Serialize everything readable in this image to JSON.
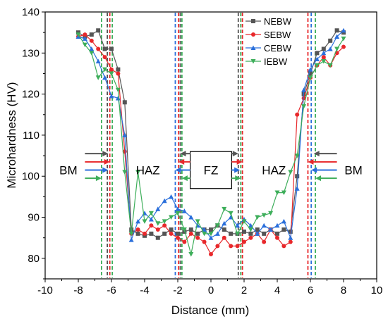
{
  "chart_data": {
    "type": "line",
    "xlabel": "Distance (mm)",
    "ylabel": "Microhardness (HV)",
    "xlim": [
      -10,
      10
    ],
    "ylim": [
      75,
      140
    ],
    "xticks": [
      -10,
      -8,
      -6,
      -4,
      -2,
      0,
      2,
      4,
      6,
      8,
      10
    ],
    "yticks": [
      80,
      90,
      100,
      110,
      120,
      130,
      140
    ],
    "legend_position": "top-right",
    "grid": false,
    "series": [
      {
        "name": "NEBW",
        "color": "#555555",
        "marker": "square",
        "x": [
          -8.0,
          -7.6,
          -7.2,
          -6.8,
          -6.4,
          -6.0,
          -5.6,
          -5.2,
          -4.8,
          -4.4,
          -4.0,
          -3.6,
          -3.2,
          -2.8,
          -2.4,
          -2.0,
          -1.6,
          -1.2,
          -0.8,
          -0.4,
          0.0,
          0.4,
          0.8,
          1.2,
          1.6,
          2.0,
          2.4,
          2.8,
          3.2,
          3.6,
          4.0,
          4.4,
          4.8,
          5.2,
          5.6,
          6.0,
          6.4,
          6.8,
          7.2,
          7.6,
          8.0
        ],
        "y": [
          135,
          134,
          134.5,
          135.5,
          131,
          131,
          126,
          118,
          87,
          86,
          85.5,
          86,
          85,
          86,
          87,
          86,
          86.5,
          87,
          86,
          87,
          87,
          88,
          87,
          86,
          86,
          86.5,
          86,
          87,
          86,
          87,
          86,
          87,
          86.5,
          100,
          120,
          125,
          130,
          131,
          133,
          135.5,
          135
        ]
      },
      {
        "name": "SEBW",
        "color": "#e8282b",
        "marker": "circle",
        "x": [
          -8.0,
          -7.6,
          -7.2,
          -6.8,
          -6.4,
          -6.0,
          -5.6,
          -5.2,
          -4.8,
          -4.4,
          -4.0,
          -3.6,
          -3.2,
          -2.8,
          -2.4,
          -2.0,
          -1.6,
          -1.2,
          -0.8,
          -0.4,
          0.0,
          0.4,
          0.8,
          1.2,
          1.6,
          2.0,
          2.4,
          2.8,
          3.2,
          3.6,
          4.0,
          4.4,
          4.8,
          5.2,
          5.6,
          6.0,
          6.4,
          6.8,
          7.2,
          7.6,
          8.0
        ],
        "y": [
          134,
          134.5,
          133,
          131,
          129,
          126,
          125,
          106,
          86,
          87,
          86,
          88,
          87,
          88,
          86,
          85,
          84,
          86,
          85,
          84,
          81,
          83,
          85,
          83,
          83,
          84,
          85,
          86,
          84,
          87,
          85,
          83,
          84,
          115,
          119,
          124,
          127,
          129,
          127,
          130,
          131.5
        ]
      },
      {
        "name": "CEBW",
        "color": "#2a6fdb",
        "marker": "triangle-up",
        "x": [
          -8.0,
          -7.6,
          -7.2,
          -6.8,
          -6.4,
          -6.0,
          -5.6,
          -5.2,
          -4.8,
          -4.4,
          -4.0,
          -3.6,
          -3.2,
          -2.8,
          -2.4,
          -2.0,
          -1.6,
          -1.2,
          -0.8,
          -0.4,
          0.0,
          0.4,
          0.8,
          1.2,
          1.6,
          2.0,
          2.4,
          2.8,
          3.2,
          3.6,
          4.0,
          4.4,
          4.8,
          5.2,
          5.6,
          6.0,
          6.4,
          6.8,
          7.2,
          7.6,
          8.0
        ],
        "y": [
          134,
          133.5,
          131,
          128,
          124,
          119.5,
          119,
          110,
          84.5,
          89,
          91,
          89.5,
          92,
          94,
          95,
          92,
          91.5,
          90,
          88,
          87,
          85,
          86,
          88.5,
          90,
          88,
          89.5,
          88,
          86,
          88,
          87,
          88,
          89,
          85,
          97,
          121,
          126,
          128.5,
          130,
          131,
          134,
          135.5
        ]
      },
      {
        "name": "IEBW",
        "color": "#3dae5a",
        "marker": "triangle-down",
        "x": [
          -8.0,
          -7.6,
          -7.2,
          -6.8,
          -6.4,
          -6.0,
          -5.6,
          -5.2,
          -4.8,
          -4.4,
          -4.0,
          -3.6,
          -3.2,
          -2.8,
          -2.4,
          -2.0,
          -1.6,
          -1.2,
          -0.8,
          -0.4,
          0.0,
          0.4,
          0.8,
          1.2,
          1.6,
          2.0,
          2.4,
          2.8,
          3.2,
          3.6,
          4.0,
          4.4,
          4.8,
          5.2,
          5.6,
          6.0,
          6.4,
          6.8,
          7.2,
          7.6,
          8.0
        ],
        "y": [
          134.5,
          132,
          130,
          124,
          126,
          125,
          121,
          101,
          86,
          101,
          89,
          91,
          88.5,
          89,
          90,
          91,
          87,
          81,
          89,
          86,
          86,
          88,
          92,
          91,
          86,
          89,
          87,
          90,
          90.5,
          91,
          96,
          96,
          101,
          105,
          117,
          124,
          127,
          128,
          127,
          131,
          133.5
        ]
      }
    ],
    "boundaries": [
      {
        "x": -6.6,
        "color": "#3dae5a"
      },
      {
        "x": -6.25,
        "color": "#555555"
      },
      {
        "x": -6.1,
        "color": "#e8282b"
      },
      {
        "x": -5.95,
        "color": "#3dae5a"
      },
      {
        "x": -2.15,
        "color": "#2a6fdb"
      },
      {
        "x": -1.95,
        "color": "#e8282b"
      },
      {
        "x": -1.85,
        "color": "#555555"
      },
      {
        "x": -1.75,
        "color": "#3dae5a"
      },
      {
        "x": 1.65,
        "color": "#555555"
      },
      {
        "x": 1.8,
        "color": "#3dae5a"
      },
      {
        "x": 1.9,
        "color": "#e8282b"
      },
      {
        "x": 5.85,
        "color": "#e8282b"
      },
      {
        "x": 6.05,
        "color": "#2a6fdb"
      },
      {
        "x": 6.3,
        "color": "#3dae5a"
      }
    ],
    "region_labels": [
      {
        "text": "BM",
        "x": -8.6,
        "y": 101.5
      },
      {
        "text": "HAZ",
        "x": -3.8,
        "y": 101.5
      },
      {
        "text": "FZ",
        "x": 0.0,
        "y": 101.5
      },
      {
        "text": "HAZ",
        "x": 3.8,
        "y": 101.5
      },
      {
        "text": "BM",
        "x": 8.6,
        "y": 101.5
      }
    ],
    "fz_box": {
      "x0": -1.25,
      "x1": 1.25,
      "y0": 97,
      "y1": 106
    },
    "arrows": [
      {
        "side": "left-outer",
        "tip_x": -6.2,
        "tail_x": -7.6,
        "y": 105.5,
        "color": "#555555"
      },
      {
        "side": "left-outer",
        "tip_x": -6.1,
        "tail_x": -7.6,
        "y": 103.5,
        "color": "#e8282b"
      },
      {
        "side": "left-outer",
        "tip_x": -6.2,
        "tail_x": -7.6,
        "y": 101.5,
        "color": "#2a6fdb"
      },
      {
        "side": "left-outer",
        "tip_x": -6.6,
        "tail_x": -7.6,
        "y": 99.5,
        "color": "#3dae5a"
      },
      {
        "side": "fz-left",
        "tip_x": -1.85,
        "tail_x": -1.25,
        "y": 105.5,
        "color": "#555555"
      },
      {
        "side": "fz-left",
        "tip_x": -1.95,
        "tail_x": -1.25,
        "y": 103.5,
        "color": "#e8282b"
      },
      {
        "side": "fz-left",
        "tip_x": -2.15,
        "tail_x": -1.25,
        "y": 101.5,
        "color": "#2a6fdb"
      },
      {
        "side": "fz-left",
        "tip_x": -1.75,
        "tail_x": -1.25,
        "y": 99.5,
        "color": "#3dae5a"
      },
      {
        "side": "fz-right",
        "tip_x": 1.65,
        "tail_x": 1.25,
        "y": 105.5,
        "color": "#555555"
      },
      {
        "side": "fz-right",
        "tip_x": 1.9,
        "tail_x": 1.25,
        "y": 103.5,
        "color": "#e8282b"
      },
      {
        "side": "fz-right",
        "tip_x": 1.75,
        "tail_x": 1.25,
        "y": 101.5,
        "color": "#2a6fdb"
      },
      {
        "side": "fz-right",
        "tip_x": 1.8,
        "tail_x": 1.25,
        "y": 99.5,
        "color": "#3dae5a"
      },
      {
        "side": "right-outer",
        "tip_x": 6.2,
        "tail_x": 7.6,
        "y": 105.5,
        "color": "#555555"
      },
      {
        "side": "right-outer",
        "tip_x": 5.85,
        "tail_x": 7.6,
        "y": 103.5,
        "color": "#e8282b"
      },
      {
        "side": "right-outer",
        "tip_x": 6.05,
        "tail_x": 7.6,
        "y": 101.5,
        "color": "#2a6fdb"
      },
      {
        "side": "right-outer",
        "tip_x": 6.3,
        "tail_x": 7.6,
        "y": 99.5,
        "color": "#3dae5a"
      }
    ]
  }
}
